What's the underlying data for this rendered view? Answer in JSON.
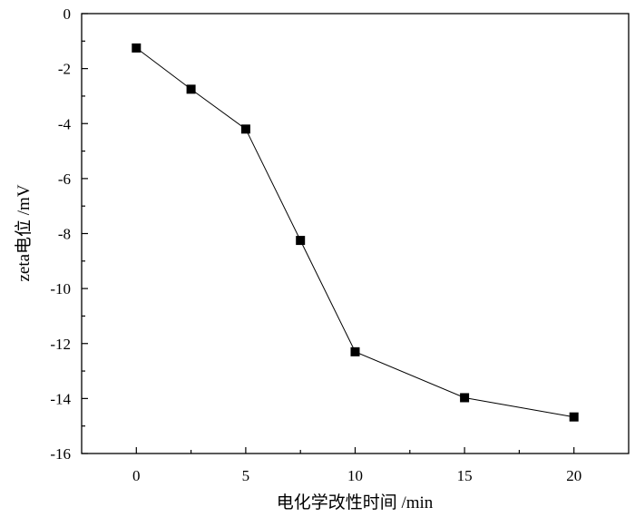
{
  "chart_data": {
    "type": "line",
    "xlabel": "电化学改性时间 /min",
    "ylabel": "zeta电位 /mV",
    "xlim": [
      -2.5,
      22.5
    ],
    "ylim": [
      -16,
      0
    ],
    "xticks": [
      0,
      5,
      10,
      15,
      20
    ],
    "xtick_labels": [
      "0",
      "5",
      "10",
      "15",
      "20"
    ],
    "xminor_step": 2.5,
    "yticks": [
      0,
      -2,
      -4,
      -6,
      -8,
      -10,
      -12,
      -14,
      -16
    ],
    "ytick_labels": [
      "0",
      "-2",
      "-4",
      "-6",
      "-8",
      "-10",
      "-12",
      "-14",
      "-16"
    ],
    "yminor_step": 1,
    "grid": false,
    "legend": "none",
    "marker": "square",
    "series": [
      {
        "x": [
          0,
          2.5,
          5,
          7.5,
          10,
          15,
          20
        ],
        "y": [
          -1.25,
          -2.75,
          -4.2,
          -8.25,
          -12.3,
          -13.97,
          -14.67
        ]
      }
    ]
  }
}
